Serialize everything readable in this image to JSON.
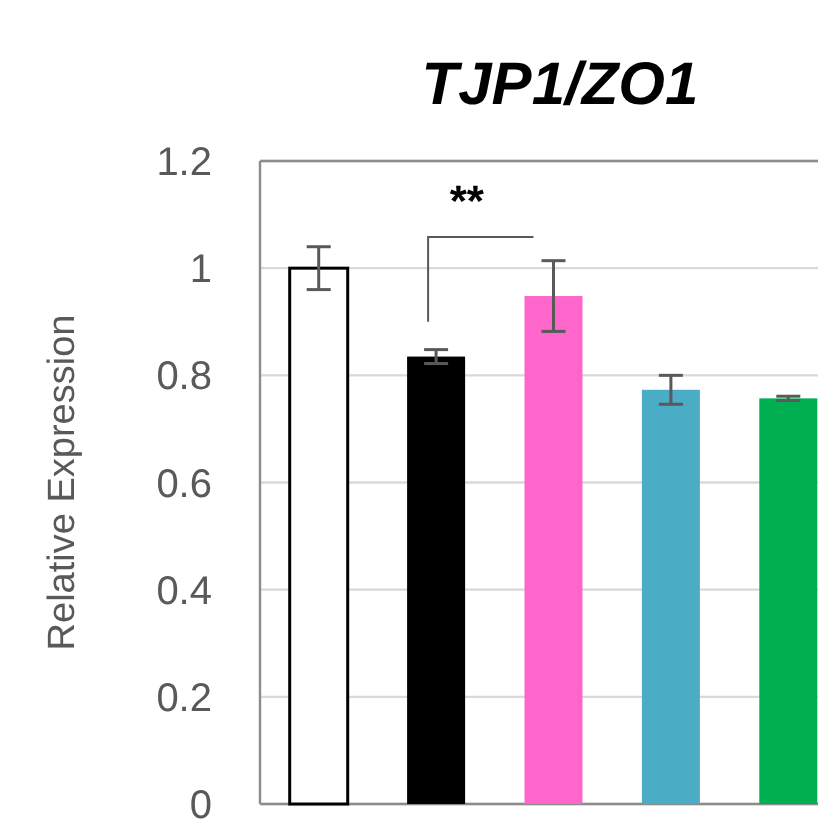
{
  "chart_data": {
    "type": "bar",
    "title": "TJP1/ZO1",
    "ylabel": "Relative Expression",
    "categories": [
      null,
      null,
      null,
      null,
      null
    ],
    "values": [
      1.0,
      0.835,
      0.948,
      0.773,
      0.757
    ],
    "colors": [
      "#ffffff",
      "#000000",
      "#ff66cc",
      "#4bacc6",
      "#00b050"
    ],
    "errors": [
      0.04,
      0.013,
      0.066,
      0.027,
      0.004
    ],
    "ylim": [
      0,
      1.2
    ],
    "yticks": [
      0,
      0.2,
      0.4,
      0.6,
      0.8,
      1,
      1.2
    ],
    "grid": "y",
    "annotations": [
      "**"
    ]
  }
}
